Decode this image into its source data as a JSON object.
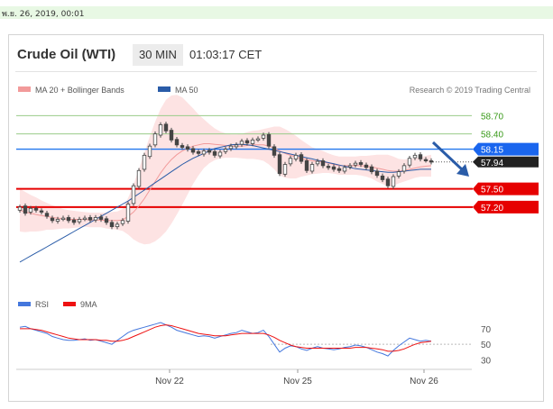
{
  "timestamp": "พ.ย. 26, 2019, 00:01",
  "header": {
    "title": "Crude Oil (WTI)",
    "timeframe": "30 MIN",
    "time": "01:03:17 CET"
  },
  "legend": {
    "ma_bb": "MA 20 + Bollinger Bands",
    "ma50": "MA 50",
    "credit": "Research © 2019 Trading Central",
    "rsi": "RSI",
    "rsi_ma": "9MA"
  },
  "colors": {
    "ma_bb": "#f29a9a",
    "ma50": "#2a5ca8",
    "bb_fill": "#fde3e3",
    "candle": "#444444",
    "resistance": "#99cc88",
    "support": "#e60000",
    "pivot": "#2277ee",
    "rsi": "#4477dd",
    "rsi_ma": "#ee1111"
  },
  "chart_data": {
    "type": "candlestick",
    "price_axis": {
      "min": 55.9,
      "max": 59.0
    },
    "levels": [
      {
        "value": 58.7,
        "label": "58.70",
        "kind": "resistance"
      },
      {
        "value": 58.4,
        "label": "58.40",
        "kind": "resistance"
      },
      {
        "value": 58.15,
        "label": "58.15",
        "kind": "pivot"
      },
      {
        "value": 57.94,
        "label": "57.94",
        "kind": "last"
      },
      {
        "value": 57.5,
        "label": "57.50",
        "kind": "support"
      },
      {
        "value": 57.2,
        "label": "57.20",
        "kind": "support"
      }
    ],
    "x_ticks": [
      "Nov 22",
      "Nov 25",
      "Nov 26"
    ],
    "close": [
      57.2,
      57.1,
      57.18,
      57.15,
      57.12,
      57.05,
      56.98,
      57.0,
      57.02,
      56.98,
      56.95,
      57.0,
      57.02,
      56.99,
      57.03,
      57.0,
      56.95,
      56.88,
      56.92,
      56.98,
      57.25,
      57.55,
      57.8,
      58.05,
      58.2,
      58.4,
      58.55,
      58.45,
      58.3,
      58.22,
      58.18,
      58.15,
      58.1,
      58.08,
      58.12,
      58.1,
      58.05,
      58.1,
      58.15,
      58.2,
      58.22,
      58.28,
      58.25,
      58.3,
      58.32,
      58.38,
      58.2,
      58.05,
      57.75,
      57.9,
      58.0,
      58.05,
      57.95,
      57.8,
      57.9,
      57.95,
      57.88,
      57.85,
      57.82,
      57.8,
      57.85,
      57.88,
      57.92,
      57.9,
      57.85,
      57.78,
      57.72,
      57.65,
      57.55,
      57.7,
      57.78,
      57.88,
      58.0,
      58.05,
      57.99,
      57.97,
      57.94
    ],
    "open": [
      57.15,
      57.22,
      57.12,
      57.18,
      57.14,
      57.1,
      57.02,
      56.97,
      57.01,
      57.03,
      56.99,
      56.96,
      57.01,
      57.03,
      56.99,
      57.04,
      57.01,
      56.95,
      56.88,
      56.93,
      56.97,
      57.26,
      57.54,
      57.82,
      58.03,
      58.22,
      58.38,
      58.56,
      58.46,
      58.31,
      58.21,
      58.19,
      58.16,
      58.11,
      58.07,
      58.13,
      58.11,
      58.04,
      58.11,
      58.16,
      58.19,
      58.23,
      58.29,
      58.24,
      58.31,
      58.33,
      58.39,
      58.19,
      58.06,
      57.74,
      57.91,
      57.99,
      58.06,
      57.96,
      57.79,
      57.91,
      57.96,
      57.87,
      57.86,
      57.83,
      57.79,
      57.86,
      57.89,
      57.93,
      57.89,
      57.86,
      57.79,
      57.71,
      57.66,
      57.54,
      57.71,
      57.79,
      57.89,
      58.01,
      58.06,
      57.98,
      57.96
    ],
    "ma50": [
      56.3,
      56.35,
      56.4,
      56.45,
      56.5,
      56.55,
      56.6,
      56.65,
      56.7,
      56.75,
      56.8,
      56.85,
      56.9,
      56.95,
      57.0,
      57.05,
      57.1,
      57.15,
      57.2,
      57.25,
      57.3,
      57.36,
      57.42,
      57.48,
      57.54,
      57.6,
      57.66,
      57.72,
      57.78,
      57.84,
      57.9,
      57.95,
      58.0,
      58.04,
      58.08,
      58.12,
      58.16,
      58.18,
      58.2,
      58.22,
      58.23,
      58.23,
      58.22,
      58.21,
      58.19,
      58.17,
      58.15,
      58.13,
      58.11,
      58.09,
      58.07,
      58.05,
      58.03,
      58.01,
      57.99,
      57.97,
      57.95,
      57.93,
      57.91,
      57.89,
      57.87,
      57.85,
      57.83,
      57.82,
      57.81,
      57.8,
      57.79,
      57.78,
      57.77,
      57.77,
      57.78,
      57.79,
      57.8,
      57.81,
      57.82,
      57.82,
      57.82
    ],
    "ma20": [
      57.15,
      57.12,
      57.1,
      57.08,
      57.06,
      57.05,
      57.03,
      57.02,
      57.01,
      57.0,
      57.0,
      57.0,
      57.0,
      56.99,
      56.99,
      56.99,
      56.98,
      56.98,
      56.98,
      56.99,
      57.05,
      57.12,
      57.22,
      57.34,
      57.48,
      57.62,
      57.76,
      57.88,
      57.98,
      58.06,
      58.12,
      58.16,
      58.2,
      58.22,
      58.24,
      58.24,
      58.23,
      58.22,
      58.21,
      58.2,
      58.2,
      58.2,
      58.21,
      58.22,
      58.22,
      58.22,
      58.2,
      58.17,
      58.12,
      58.08,
      58.05,
      58.02,
      58.0,
      57.98,
      57.96,
      57.95,
      57.94,
      57.92,
      57.9,
      57.88,
      57.88,
      57.88,
      57.88,
      57.88,
      57.87,
      57.86,
      57.84,
      57.82,
      57.8,
      57.79,
      57.79,
      57.8,
      57.82,
      57.84,
      57.86,
      57.87,
      57.88
    ],
    "bb_width": [
      0.35,
      0.33,
      0.3,
      0.28,
      0.25,
      0.22,
      0.2,
      0.18,
      0.16,
      0.15,
      0.14,
      0.13,
      0.12,
      0.12,
      0.12,
      0.12,
      0.13,
      0.14,
      0.15,
      0.18,
      0.3,
      0.45,
      0.6,
      0.75,
      0.88,
      0.98,
      1.05,
      1.08,
      1.05,
      0.98,
      0.88,
      0.75,
      0.62,
      0.5,
      0.4,
      0.32,
      0.26,
      0.22,
      0.2,
      0.19,
      0.19,
      0.2,
      0.22,
      0.23,
      0.24,
      0.26,
      0.3,
      0.35,
      0.4,
      0.4,
      0.38,
      0.35,
      0.3,
      0.26,
      0.22,
      0.2,
      0.18,
      0.16,
      0.15,
      0.15,
      0.15,
      0.15,
      0.15,
      0.16,
      0.17,
      0.19,
      0.22,
      0.24,
      0.26,
      0.24,
      0.2,
      0.18,
      0.17,
      0.16,
      0.16,
      0.17,
      0.18
    ],
    "rsi_axis": {
      "min": 20,
      "max": 85,
      "ticks": [
        70,
        50,
        30
      ]
    },
    "rsi": [
      72,
      73,
      70,
      68,
      66,
      64,
      60,
      58,
      56,
      55,
      55,
      56,
      57,
      55,
      56,
      54,
      52,
      50,
      55,
      60,
      65,
      68,
      70,
      72,
      74,
      76,
      78,
      75,
      72,
      68,
      66,
      64,
      62,
      60,
      61,
      60,
      58,
      60,
      62,
      64,
      65,
      68,
      66,
      64,
      65,
      68,
      60,
      50,
      40,
      45,
      48,
      47,
      44,
      42,
      45,
      47,
      45,
      44,
      43,
      44,
      46,
      47,
      49,
      48,
      46,
      43,
      40,
      38,
      35,
      42,
      48,
      53,
      58,
      56,
      54,
      55,
      54
    ],
    "rsi_ma": [
      70,
      70,
      70,
      69,
      68,
      66,
      64,
      62,
      60,
      58,
      57,
      56,
      56,
      56,
      56,
      55,
      55,
      54,
      54,
      55,
      57,
      60,
      63,
      66,
      69,
      72,
      74,
      75,
      74,
      72,
      70,
      68,
      66,
      64,
      63,
      62,
      61,
      61,
      61,
      62,
      63,
      64,
      64,
      64,
      64,
      64,
      62,
      59,
      55,
      52,
      49,
      47,
      46,
      45,
      45,
      45,
      45,
      45,
      45,
      45,
      45,
      45,
      46,
      46,
      46,
      45,
      44,
      43,
      41,
      41,
      42,
      44,
      47,
      50,
      52,
      53,
      54
    ]
  }
}
